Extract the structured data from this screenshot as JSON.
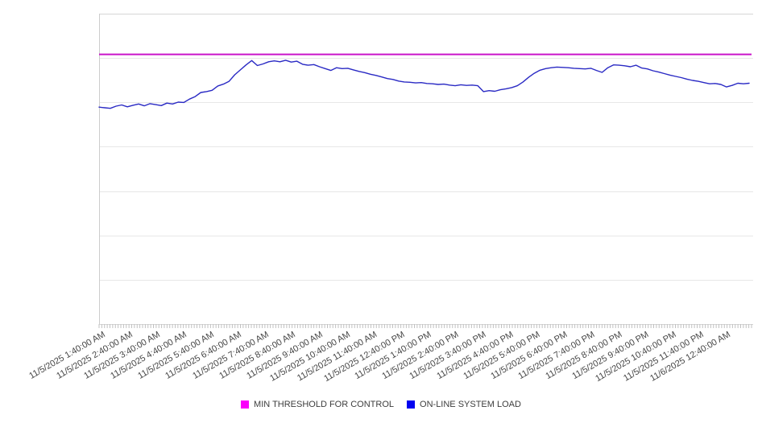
{
  "chart_data": {
    "type": "line",
    "title": "",
    "legend_position": "bottom",
    "x_axis": {
      "tick_labels": [
        "11/5/2025 1:40:00 AM",
        "11/5/2025 2:40:00 AM",
        "11/5/2025 3:40:00 AM",
        "11/5/2025 4:40:00 AM",
        "11/5/2025 5:40:00 AM",
        "11/5/2025 6:40:00 AM",
        "11/5/2025 7:40:00 AM",
        "11/5/2025 8:40:00 AM",
        "11/5/2025 9:40:00 AM",
        "11/5/2025 10:40:00 AM",
        "11/5/2025 11:40:00 AM",
        "11/5/2025 12:40:00 PM",
        "11/5/2025 1:40:00 PM",
        "11/5/2025 2:40:00 PM",
        "11/5/2025 3:40:00 PM",
        "11/5/2025 4:40:00 PM",
        "11/5/2025 5:40:00 PM",
        "11/5/2025 6:40:00 PM",
        "11/5/2025 7:40:00 PM",
        "11/5/2025 8:40:00 PM",
        "11/5/2025 9:40:00 PM",
        "11/5/2025 10:40:00 PM",
        "11/5/2025 11:40:00 PM",
        "11/6/2025 12:40:00 AM"
      ],
      "minor_tick_count": 240
    },
    "y_axis": {
      "tick_labels_visible": false,
      "range": [
        0,
        100
      ],
      "gridline_rows": 7
    },
    "series": [
      {
        "name": "MIN THRESHOLD FOR CONTROL",
        "type": "constant",
        "value": 86.9,
        "swatch_color": "#FB00FB",
        "line_color": "#C913C9"
      },
      {
        "name": "ON-LINE SYSTEM LOAD",
        "type": "line",
        "swatch_color": "#0202F0",
        "line_color": "#2A2AC4",
        "values": [
          69.9,
          69.7,
          69.5,
          70.2,
          70.6,
          70.0,
          70.5,
          70.9,
          70.3,
          71.0,
          70.7,
          70.4,
          71.2,
          70.9,
          71.5,
          71.4,
          72.5,
          73.3,
          74.6,
          74.9,
          75.3,
          76.7,
          77.3,
          78.2,
          80.3,
          81.9,
          83.5,
          84.9,
          83.3,
          83.8,
          84.5,
          84.8,
          84.5,
          85.0,
          84.4,
          84.7,
          83.7,
          83.4,
          83.6,
          82.9,
          82.3,
          81.7,
          82.6,
          82.3,
          82.4,
          81.9,
          81.4,
          81.0,
          80.5,
          80.1,
          79.6,
          79.1,
          78.8,
          78.3,
          78.0,
          77.9,
          77.7,
          77.8,
          77.5,
          77.4,
          77.2,
          77.3,
          77.0,
          76.8,
          77.1,
          76.9,
          77.0,
          76.8,
          74.9,
          75.2,
          75.0,
          75.5,
          75.8,
          76.2,
          76.8,
          78.0,
          79.5,
          80.8,
          81.8,
          82.3,
          82.6,
          82.8,
          82.7,
          82.6,
          82.4,
          82.3,
          82.2,
          82.4,
          81.7,
          81.1,
          82.6,
          83.5,
          83.4,
          83.2,
          82.9,
          83.4,
          82.5,
          82.2,
          81.6,
          81.2,
          80.7,
          80.2,
          79.8,
          79.4,
          78.9,
          78.5,
          78.2,
          77.8,
          77.4,
          77.5,
          77.2,
          76.4,
          76.9,
          77.6,
          77.4,
          77.6
        ]
      }
    ],
    "grid_color": "#e7e7e7",
    "border_color": "#d6d6d6",
    "tick_color": "#c0c0c0"
  }
}
